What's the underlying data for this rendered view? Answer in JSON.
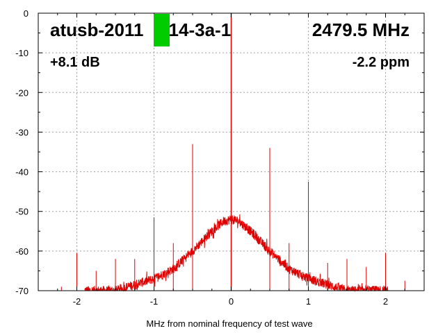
{
  "chart_data": {
    "type": "line",
    "title": "",
    "xlabel": "MHz from nominal frequency of test wave",
    "ylabel": "",
    "xlim": [
      -2.5,
      2.5
    ],
    "ylim": [
      -70,
      0
    ],
    "x_ticks": [
      -2,
      -1,
      0,
      1,
      2
    ],
    "x_tick_labels": [
      "-2",
      "-1",
      "0",
      "1",
      "2"
    ],
    "y_ticks": [
      0,
      -10,
      -20,
      -30,
      -40,
      -50,
      -60,
      -70
    ],
    "y_tick_labels": [
      "0",
      "-10",
      "-20",
      "-30",
      "-40",
      "-50",
      "-60",
      "-70"
    ],
    "grid": true,
    "series_color": "#e00000",
    "series": [
      {
        "name": "",
        "noise_envelope": {
          "x": [
            -2.0,
            -1.5,
            -1.0,
            -0.75,
            -0.5,
            -0.25,
            -0.1,
            0.0,
            0.1,
            0.25,
            0.5,
            0.75,
            1.0,
            1.5,
            2.0
          ],
          "y": [
            -70,
            -70,
            -67,
            -64.5,
            -60,
            -55,
            -52.5,
            -52,
            -52.5,
            -55,
            -60,
            -64.5,
            -67,
            -70,
            -70
          ]
        },
        "spurs": {
          "x": [
            -2.2,
            -2.0,
            -1.75,
            -1.5,
            -1.25,
            -1.0,
            -0.75,
            -0.5,
            0.0,
            0.5,
            0.75,
            1.0,
            1.25,
            1.5,
            1.75,
            2.0,
            2.25
          ],
          "y": [
            -69,
            -60.5,
            -65,
            -62,
            -62,
            -51.5,
            -58,
            -33,
            0,
            -34,
            -58,
            -42.5,
            -63,
            -62,
            -64,
            -60.5,
            -67.5
          ]
        }
      }
    ],
    "annotations": {
      "device_text": "atusb-2011   214-3a-1",
      "frequency_text": "2479.5 MHz",
      "gain_text": "+8.1 dB",
      "drift_text": "-2.2 ppm"
    },
    "status_color": "#00cc00"
  }
}
